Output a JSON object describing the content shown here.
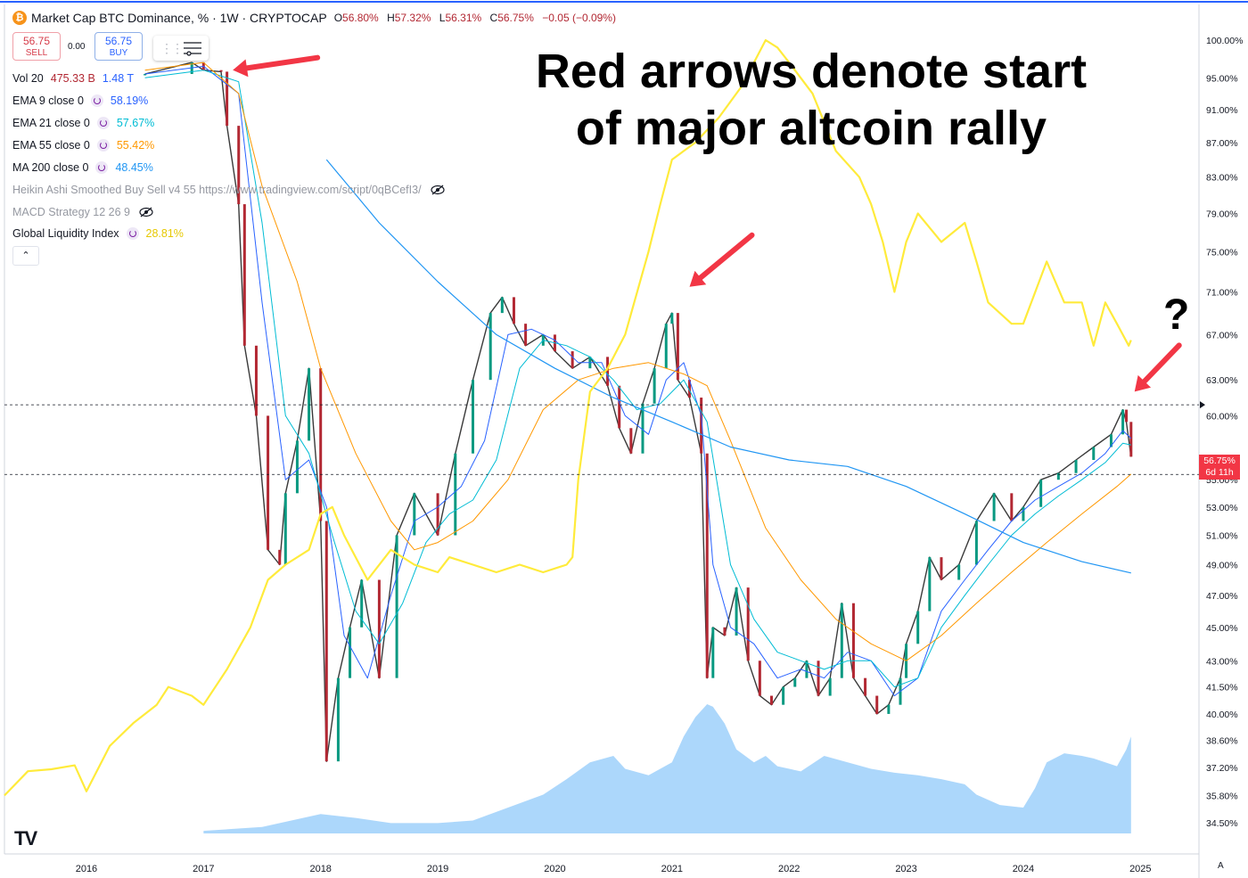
{
  "header": {
    "title": "Market Cap BTC Dominance, % · 1W · CRYPTOCAP",
    "ohlc": {
      "o_label": "O",
      "o": "56.80%",
      "h_label": "H",
      "h": "57.32%",
      "l_label": "L",
      "l": "56.31%",
      "c_label": "C",
      "c": "56.75%",
      "change": "−0.05 (−0.09%)"
    },
    "coin_icon": "bitcoin-icon"
  },
  "trade": {
    "sell_price": "56.75",
    "sell_label": "SELL",
    "spread": "0.00",
    "buy_price": "56.75",
    "buy_label": "BUY"
  },
  "indicators": [
    {
      "name": "Vol 20",
      "values": [
        "475.33 B",
        "1.48 T"
      ],
      "colors": [
        "#b22833",
        "#2962ff"
      ]
    },
    {
      "name": "EMA 9 close 0",
      "value": "58.19%",
      "color": "#2962ff"
    },
    {
      "name": "EMA 21 close 0",
      "value": "57.67%",
      "color": "#00bcd4"
    },
    {
      "name": "EMA 55 close 0",
      "value": "55.42%",
      "color": "#ff9800"
    },
    {
      "name": "MA 200 close 0",
      "value": "48.45%",
      "color": "#2196f3"
    },
    {
      "name": "Heikin Ashi Smoothed Buy Sell v4 55 https://www.tradingview.com/script/0qBCefI3/",
      "hidden": true
    },
    {
      "name": "MACD Strategy 12 26 9",
      "hidden": true
    },
    {
      "name": "Global Liquidity Index",
      "value": "28.81%",
      "color": "#ffeb3b"
    }
  ],
  "annotation": {
    "text_line1": "Red arrows denote start",
    "text_line2": "of major altcoin rally",
    "question": "?"
  },
  "price_tag": {
    "value": "56.75%",
    "countdown": "6d 11h"
  },
  "colors": {
    "up": "#089981",
    "down": "#b22833",
    "ema9": "#2962ff",
    "ema21": "#00bcd4",
    "ema55": "#ff9800",
    "ma200": "#2196f3",
    "gli": "#ffeb3b",
    "arrow": "#f23645",
    "volume_area": "#90caf9"
  },
  "chart_data": {
    "type": "line",
    "title": "Market Cap BTC Dominance, % · 1W · CRYPTOCAP",
    "y_ticks": [
      "100.00%",
      "95.00%",
      "91.00%",
      "87.00%",
      "83.00%",
      "79.00%",
      "75.00%",
      "71.00%",
      "67.00%",
      "63.00%",
      "60.00%",
      "55.00%",
      "53.00%",
      "51.00%",
      "49.00%",
      "47.00%",
      "45.00%",
      "43.00%",
      "41.50%",
      "40.00%",
      "38.60%",
      "37.20%",
      "35.80%",
      "34.50%"
    ],
    "x_ticks": [
      "2016",
      "2017",
      "2018",
      "2019",
      "2020",
      "2021",
      "2022",
      "2023",
      "2024",
      "2025"
    ],
    "x_range": [
      2015.3,
      2025.5
    ],
    "ylim": [
      34.0,
      100.0
    ],
    "y_scale": "log",
    "grid": false,
    "series": [
      {
        "name": "Market Cap BTC Dominance",
        "role": "price",
        "x": [
          2016.5,
          2016.9,
          2017.0,
          2017.15,
          2017.2,
          2017.3,
          2017.35,
          2017.45,
          2017.55,
          2017.65,
          2017.7,
          2017.8,
          2017.9,
          2018.0,
          2018.05,
          2018.15,
          2018.25,
          2018.35,
          2018.5,
          2018.65,
          2018.8,
          2019.0,
          2019.15,
          2019.3,
          2019.45,
          2019.55,
          2019.65,
          2019.75,
          2019.9,
          2020.0,
          2020.15,
          2020.3,
          2020.45,
          2020.55,
          2020.65,
          2020.75,
          2020.85,
          2020.95,
          2021.0,
          2021.05,
          2021.15,
          2021.25,
          2021.3,
          2021.35,
          2021.45,
          2021.55,
          2021.65,
          2021.75,
          2021.85,
          2021.95,
          2022.05,
          2022.15,
          2022.25,
          2022.35,
          2022.45,
          2022.55,
          2022.65,
          2022.75,
          2022.85,
          2022.95,
          2023.0,
          2023.1,
          2023.2,
          2023.3,
          2023.45,
          2023.6,
          2023.75,
          2023.9,
          2024.0,
          2024.15,
          2024.3,
          2024.45,
          2024.6,
          2024.75,
          2024.85,
          2024.88,
          2024.92
        ],
        "values": [
          95.5,
          97.0,
          96.0,
          95.8,
          89.0,
          80.0,
          66.0,
          60.0,
          50.0,
          49.0,
          54.0,
          58.0,
          64.0,
          52.0,
          37.5,
          42.0,
          45.0,
          48.0,
          42.0,
          51.0,
          54.0,
          51.0,
          57.0,
          63.0,
          69.0,
          70.5,
          68.0,
          66.0,
          67.0,
          65.5,
          64.0,
          65.0,
          62.5,
          59.0,
          57.0,
          61.0,
          64.0,
          68.0,
          69.0,
          63.0,
          61.5,
          57.0,
          42.0,
          45.0,
          44.5,
          47.5,
          43.0,
          41.0,
          40.5,
          41.5,
          42.0,
          43.0,
          41.0,
          42.0,
          46.5,
          42.0,
          41.0,
          40.0,
          40.5,
          42.0,
          44.0,
          46.0,
          49.5,
          48.0,
          49.0,
          52.0,
          54.0,
          52.0,
          53.0,
          55.0,
          55.5,
          56.5,
          57.5,
          58.5,
          60.5,
          59.5,
          56.75
        ]
      },
      {
        "name": "EMA 9 close 0",
        "x": [
          2016.5,
          2017.0,
          2017.3,
          2017.5,
          2017.7,
          2017.9,
          2018.05,
          2018.2,
          2018.4,
          2018.6,
          2018.8,
          2019.0,
          2019.2,
          2019.4,
          2019.6,
          2019.8,
          2020.0,
          2020.2,
          2020.4,
          2020.6,
          2020.8,
          2020.95,
          2021.1,
          2021.25,
          2021.35,
          2021.5,
          2021.7,
          2021.9,
          2022.1,
          2022.3,
          2022.5,
          2022.7,
          2022.9,
          2023.1,
          2023.3,
          2023.5,
          2023.7,
          2023.9,
          2024.1,
          2024.3,
          2024.5,
          2024.7,
          2024.85,
          2024.92
        ],
        "values": [
          95.5,
          96.5,
          93.0,
          70.0,
          55.0,
          56.5,
          53.0,
          44.5,
          42.0,
          47.0,
          52.0,
          53.0,
          54.5,
          58.0,
          67.0,
          67.5,
          66.5,
          64.5,
          64.5,
          60.0,
          58.5,
          63.0,
          64.5,
          60.0,
          49.0,
          45.0,
          44.0,
          42.0,
          42.5,
          42.0,
          43.5,
          43.0,
          41.0,
          42.0,
          46.0,
          48.0,
          50.0,
          52.0,
          53.5,
          54.5,
          55.5,
          57.0,
          58.8,
          58.19
        ]
      },
      {
        "name": "EMA 21 close 0",
        "x": [
          2016.5,
          2017.0,
          2017.3,
          2017.5,
          2017.7,
          2017.9,
          2018.1,
          2018.3,
          2018.5,
          2018.7,
          2018.9,
          2019.1,
          2019.3,
          2019.5,
          2019.7,
          2019.9,
          2020.1,
          2020.3,
          2020.5,
          2020.7,
          2020.9,
          2021.1,
          2021.3,
          2021.5,
          2021.7,
          2021.9,
          2022.1,
          2022.3,
          2022.5,
          2022.7,
          2022.9,
          2023.1,
          2023.3,
          2023.5,
          2023.7,
          2023.9,
          2024.1,
          2024.3,
          2024.5,
          2024.7,
          2024.85,
          2024.92
        ],
        "values": [
          95.0,
          96.0,
          94.5,
          78.0,
          60.0,
          57.0,
          51.0,
          46.0,
          44.0,
          46.5,
          50.5,
          52.5,
          53.5,
          56.5,
          64.0,
          66.5,
          66.0,
          65.0,
          63.0,
          60.5,
          61.0,
          63.0,
          59.5,
          49.0,
          45.5,
          43.5,
          43.0,
          42.5,
          43.0,
          43.0,
          41.5,
          42.0,
          45.0,
          47.0,
          49.0,
          51.0,
          52.5,
          53.8,
          55.0,
          56.3,
          57.8,
          57.67
        ]
      },
      {
        "name": "EMA 55 close 0",
        "x": [
          2016.5,
          2017.0,
          2017.3,
          2017.5,
          2017.8,
          2018.0,
          2018.3,
          2018.6,
          2018.8,
          2019.0,
          2019.3,
          2019.6,
          2019.9,
          2020.2,
          2020.5,
          2020.8,
          2021.1,
          2021.3,
          2021.5,
          2021.8,
          2022.1,
          2022.4,
          2022.7,
          2023.0,
          2023.3,
          2023.6,
          2023.9,
          2024.2,
          2024.5,
          2024.8,
          2024.92
        ],
        "values": [
          96.0,
          97.0,
          93.0,
          82.0,
          72.0,
          64.0,
          57.0,
          52.0,
          50.0,
          50.5,
          52.0,
          55.0,
          60.5,
          63.0,
          64.0,
          64.5,
          63.5,
          62.5,
          58.0,
          51.5,
          48.0,
          45.5,
          44.0,
          43.0,
          44.5,
          46.5,
          48.5,
          50.5,
          52.5,
          54.5,
          55.42
        ]
      },
      {
        "name": "MA 200 close 0",
        "x": [
          2018.05,
          2018.5,
          2019.0,
          2019.5,
          2020.0,
          2020.5,
          2021.0,
          2021.5,
          2022.0,
          2022.5,
          2023.0,
          2023.5,
          2024.0,
          2024.5,
          2024.92
        ],
        "values": [
          85.0,
          78.0,
          72.0,
          67.0,
          64.0,
          61.5,
          59.5,
          57.5,
          56.5,
          56.0,
          54.5,
          52.5,
          50.5,
          49.2,
          48.45
        ]
      },
      {
        "name": "Global Liquidity Index",
        "x": [
          2015.3,
          2015.5,
          2015.7,
          2015.9,
          2016.0,
          2016.2,
          2016.4,
          2016.6,
          2016.7,
          2016.9,
          2017.0,
          2017.2,
          2017.4,
          2017.55,
          2017.7,
          2017.9,
          2018.0,
          2018.1,
          2018.2,
          2018.4,
          2018.6,
          2018.8,
          2019.0,
          2019.1,
          2019.3,
          2019.5,
          2019.7,
          2019.9,
          2020.1,
          2020.15,
          2020.2,
          2020.3,
          2020.45,
          2020.6,
          2020.8,
          2020.9,
          2021.0,
          2021.1,
          2021.2,
          2021.4,
          2021.6,
          2021.7,
          2021.8,
          2021.9,
          2022.0,
          2022.2,
          2022.4,
          2022.6,
          2022.7,
          2022.8,
          2022.9,
          2023.0,
          2023.1,
          2023.3,
          2023.5,
          2023.6,
          2023.7,
          2023.9,
          2024.0,
          2024.2,
          2024.35,
          2024.5,
          2024.6,
          2024.7,
          2024.8,
          2024.9,
          2024.92
        ],
        "values": [
          35.8,
          37.0,
          37.1,
          37.3,
          36.0,
          38.3,
          39.5,
          40.5,
          41.5,
          41.0,
          40.5,
          42.5,
          45.0,
          48.0,
          49.0,
          50.0,
          52.5,
          53.0,
          51.0,
          48.0,
          50.0,
          49.0,
          48.5,
          49.5,
          49.0,
          48.5,
          49.0,
          48.5,
          49.0,
          49.5,
          55.0,
          62.0,
          64.0,
          67.0,
          75.0,
          80.0,
          85.0,
          86.0,
          87.0,
          90.0,
          94.0,
          97.0,
          100.0,
          99.0,
          97.0,
          93.0,
          86.0,
          83.0,
          80.0,
          76.0,
          71.0,
          76.0,
          79.0,
          76.0,
          78.0,
          74.0,
          70.0,
          68.0,
          68.0,
          74.0,
          70.0,
          70.0,
          66.0,
          70.0,
          68.0,
          66.0,
          66.5
        ]
      }
    ],
    "volume_area": {
      "x": [
        2017.0,
        2017.5,
        2018.0,
        2018.3,
        2018.6,
        2019.0,
        2019.3,
        2019.6,
        2019.9,
        2020.1,
        2020.3,
        2020.5,
        2020.6,
        2020.8,
        2021.0,
        2021.1,
        2021.2,
        2021.3,
        2021.35,
        2021.45,
        2021.55,
        2021.7,
        2021.8,
        2021.9,
        2022.1,
        2022.3,
        2022.5,
        2022.7,
        2022.9,
        2023.1,
        2023.3,
        2023.5,
        2023.6,
        2023.8,
        2024.0,
        2024.1,
        2024.2,
        2024.35,
        2024.5,
        2024.6,
        2024.7,
        2024.8,
        2024.88,
        2024.92
      ],
      "values": [
        0.02,
        0.05,
        0.15,
        0.12,
        0.08,
        0.08,
        0.1,
        0.2,
        0.3,
        0.42,
        0.55,
        0.6,
        0.5,
        0.45,
        0.55,
        0.75,
        0.9,
        1.0,
        0.98,
        0.85,
        0.65,
        0.55,
        0.6,
        0.52,
        0.48,
        0.6,
        0.55,
        0.5,
        0.47,
        0.45,
        0.42,
        0.38,
        0.3,
        0.22,
        0.2,
        0.35,
        0.55,
        0.62,
        0.6,
        0.58,
        0.55,
        0.52,
        0.65,
        0.75
      ]
    },
    "arrows": [
      {
        "tip_x": 2017.25,
        "tip_y": 96.0,
        "label": ""
      },
      {
        "tip_x": 2021.15,
        "tip_y": 71.5,
        "label": ""
      },
      {
        "tip_x": 2024.95,
        "tip_y": 62.0,
        "label": ""
      }
    ],
    "hlines": [
      60.9,
      55.4
    ]
  }
}
